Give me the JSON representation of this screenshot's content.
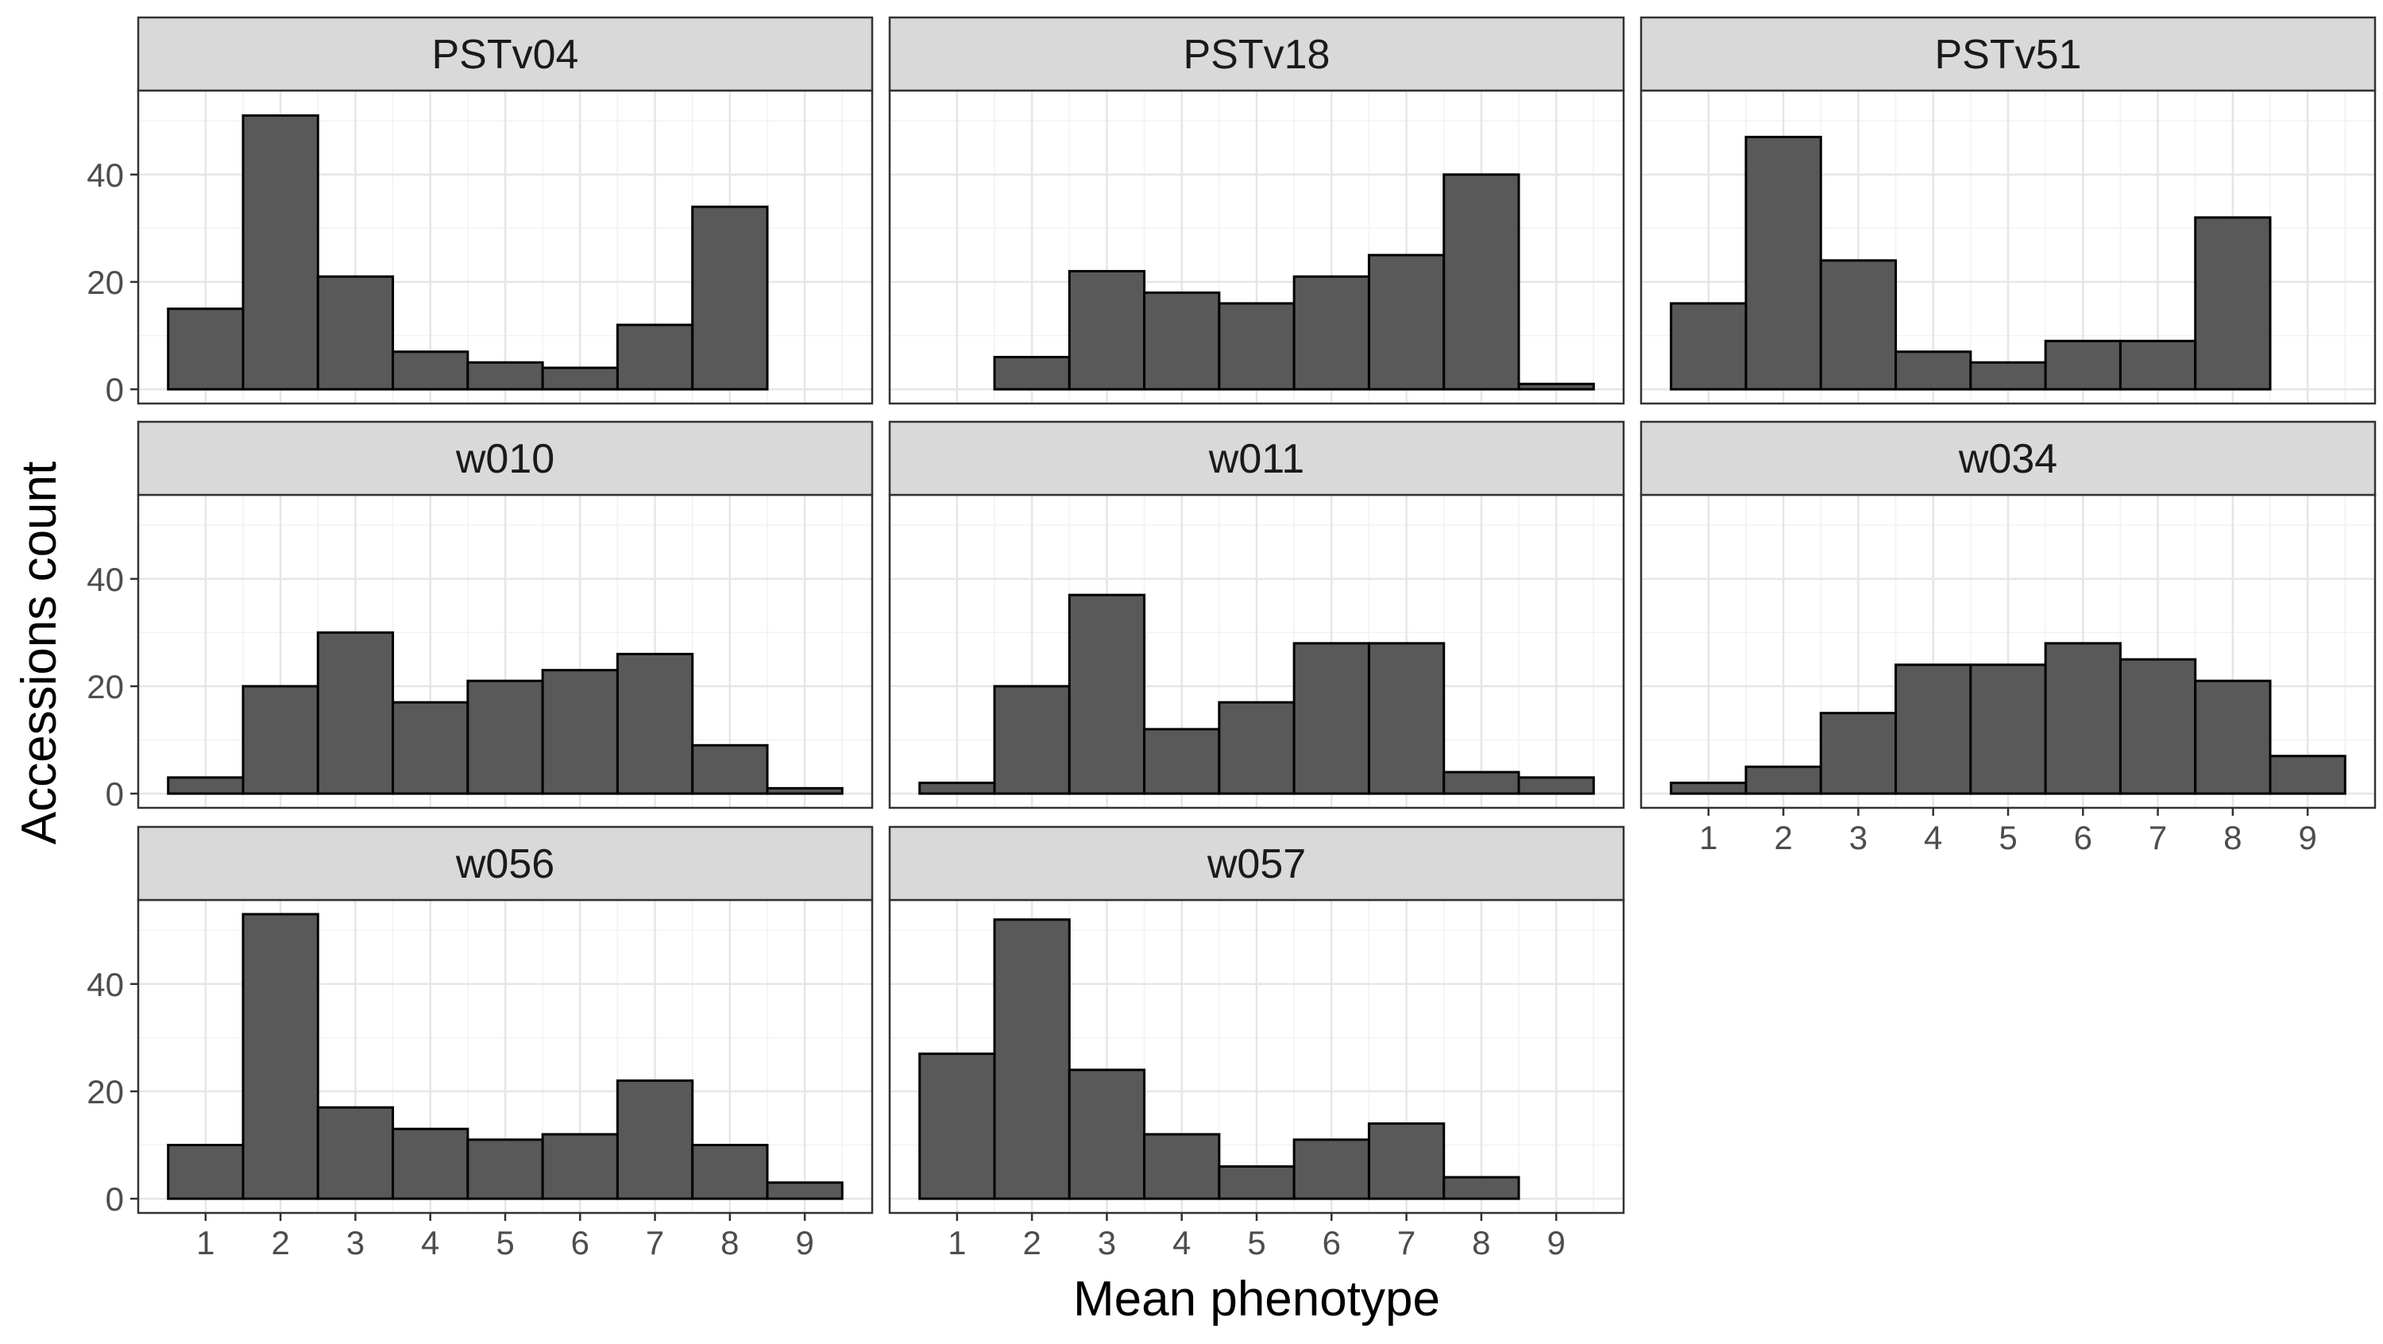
{
  "chart_data": {
    "type": "bar",
    "subtype": "faceted-histogram",
    "xlabel": "Mean phenotype",
    "ylabel": "Accessions count",
    "x_ticks": [
      1,
      2,
      3,
      4,
      5,
      6,
      7,
      8,
      9
    ],
    "y_ticks": [
      0,
      20,
      40
    ],
    "xlim": [
      0.1,
      9.9
    ],
    "ylim": [
      -2.65,
      55.65
    ],
    "grid": true,
    "bar_fill": "#595959",
    "bar_stroke": "#000000",
    "strip_fill": "#d9d9d9",
    "facets": [
      {
        "name": "PSTv04",
        "values": [
          15,
          51,
          21,
          7,
          5,
          4,
          12,
          34,
          0
        ]
      },
      {
        "name": "PSTv18",
        "values": [
          0,
          6,
          22,
          18,
          16,
          21,
          25,
          40,
          1
        ]
      },
      {
        "name": "PSTv51",
        "values": [
          16,
          47,
          24,
          7,
          5,
          9,
          9,
          32,
          0
        ]
      },
      {
        "name": "w010",
        "values": [
          3,
          20,
          30,
          17,
          21,
          23,
          26,
          9,
          1
        ]
      },
      {
        "name": "w011",
        "values": [
          2,
          20,
          37,
          12,
          17,
          28,
          28,
          4,
          3
        ]
      },
      {
        "name": "w034",
        "values": [
          2,
          5,
          15,
          24,
          24,
          28,
          25,
          21,
          7
        ]
      },
      {
        "name": "w056",
        "values": [
          10,
          53,
          17,
          13,
          11,
          12,
          22,
          10,
          3
        ]
      },
      {
        "name": "w057",
        "values": [
          27,
          52,
          24,
          12,
          6,
          11,
          14,
          4,
          0
        ]
      }
    ]
  }
}
